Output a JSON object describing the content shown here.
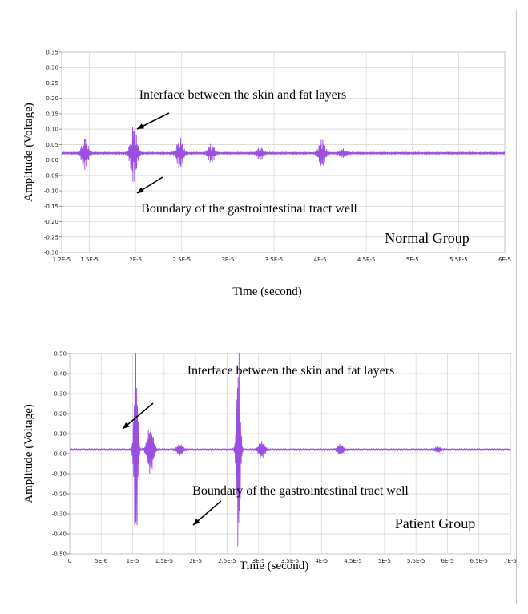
{
  "chart_data": [
    {
      "type": "line",
      "group_label": "Normal Group",
      "xlabel": "Time (second)",
      "ylabel": "Amplitude (Voltage)",
      "xlim": [
        1.2e-05,
        6e-05
      ],
      "ylim": [
        -0.3,
        0.35
      ],
      "grid": true,
      "x_ticks": [
        "1.2E-5",
        "1.5E-5",
        "2E-5",
        "2.5E-5",
        "3E-5",
        "3.5E-5",
        "4E-5",
        "4.5E-5",
        "5E-5",
        "5.5E-5",
        "6E-5"
      ],
      "x_tick_values": [
        1.2e-05,
        1.5e-05,
        2e-05,
        2.5e-05,
        3e-05,
        3.5e-05,
        4e-05,
        4.5e-05,
        5e-05,
        5.5e-05,
        6e-05
      ],
      "y_ticks": [
        "0.35",
        "0.30",
        "0.25",
        "0.20",
        "0.15",
        "0.10",
        "0.05",
        "0.00",
        "-0.05",
        "-0.10",
        "-0.15",
        "-0.20",
        "-0.25",
        "-0.30"
      ],
      "y_tick_values": [
        0.35,
        0.3,
        0.25,
        0.2,
        0.15,
        0.1,
        0.05,
        0.0,
        -0.05,
        -0.1,
        -0.15,
        -0.2,
        -0.25,
        -0.3
      ],
      "baseline": 0.022,
      "bursts": [
        {
          "t": 1.45e-05,
          "amp": 0.05
        },
        {
          "t": 1.98e-05,
          "amp": 0.095
        },
        {
          "t": 2.48e-05,
          "amp": 0.048
        },
        {
          "t": 2.82e-05,
          "amp": 0.028
        },
        {
          "t": 3.35e-05,
          "amp": 0.018
        },
        {
          "t": 4.02e-05,
          "amp": 0.042
        },
        {
          "t": 4.25e-05,
          "amp": 0.012
        }
      ],
      "annotations": [
        {
          "text": "Interface between the skin and fat layers",
          "target_x": 1.98e-05,
          "target_y": 0.08
        },
        {
          "text": "Boundary of the gastrointestinal tract well",
          "target_x": 2.4e-05,
          "target_y": -0.03
        }
      ],
      "series_color": "#9b4fe0"
    },
    {
      "type": "line",
      "group_label": "Patient Group",
      "xlabel": "Time (second)",
      "ylabel": "Amplitude (Voltage)",
      "xlim": [
        0,
        7e-05
      ],
      "ylim": [
        -0.5,
        0.5
      ],
      "grid": true,
      "x_ticks": [
        "0",
        "5E-6",
        "1E-5",
        "1.5E-5",
        "2E-5",
        "2.5E-5",
        "3E-5",
        "3.5E-5",
        "4E-5",
        "4.5E-5",
        "5E-5",
        "5.5E-5",
        "6E-5",
        "6.5E-5",
        "7E-5"
      ],
      "x_tick_values": [
        0,
        5e-06,
        1e-05,
        1.5e-05,
        2e-05,
        2.5e-05,
        3e-05,
        3.5e-05,
        4e-05,
        4.5e-05,
        5e-05,
        5.5e-05,
        6e-05,
        6.5e-05,
        7e-05
      ],
      "y_ticks": [
        "0.50",
        "0.40",
        "0.30",
        "0.20",
        "0.10",
        "0.00",
        "-0.10",
        "-0.20",
        "-0.30",
        "-0.40",
        "-0.50"
      ],
      "y_tick_values": [
        0.5,
        0.4,
        0.3,
        0.2,
        0.1,
        0.0,
        -0.1,
        -0.2,
        -0.3,
        -0.4,
        -0.5
      ],
      "baseline": 0.02,
      "bursts": [
        {
          "t": 1.05e-05,
          "amp": 0.52
        },
        {
          "t": 1.28e-05,
          "amp": 0.12
        },
        {
          "t": 1.75e-05,
          "amp": 0.025
        },
        {
          "t": 2.68e-05,
          "amp": 0.52
        },
        {
          "t": 3.05e-05,
          "amp": 0.04
        },
        {
          "t": 4.3e-05,
          "amp": 0.025
        },
        {
          "t": 5.85e-05,
          "amp": 0.012
        }
      ],
      "annotations": [
        {
          "text": "Interface between the skin and fat layers",
          "target_x": 1.35e-05,
          "target_y": 0.12
        },
        {
          "text": "Boundary of the gastrointestinal tract well",
          "target_x": 2.63e-05,
          "target_y": -0.44
        }
      ],
      "series_color": "#9b4fe0"
    }
  ]
}
